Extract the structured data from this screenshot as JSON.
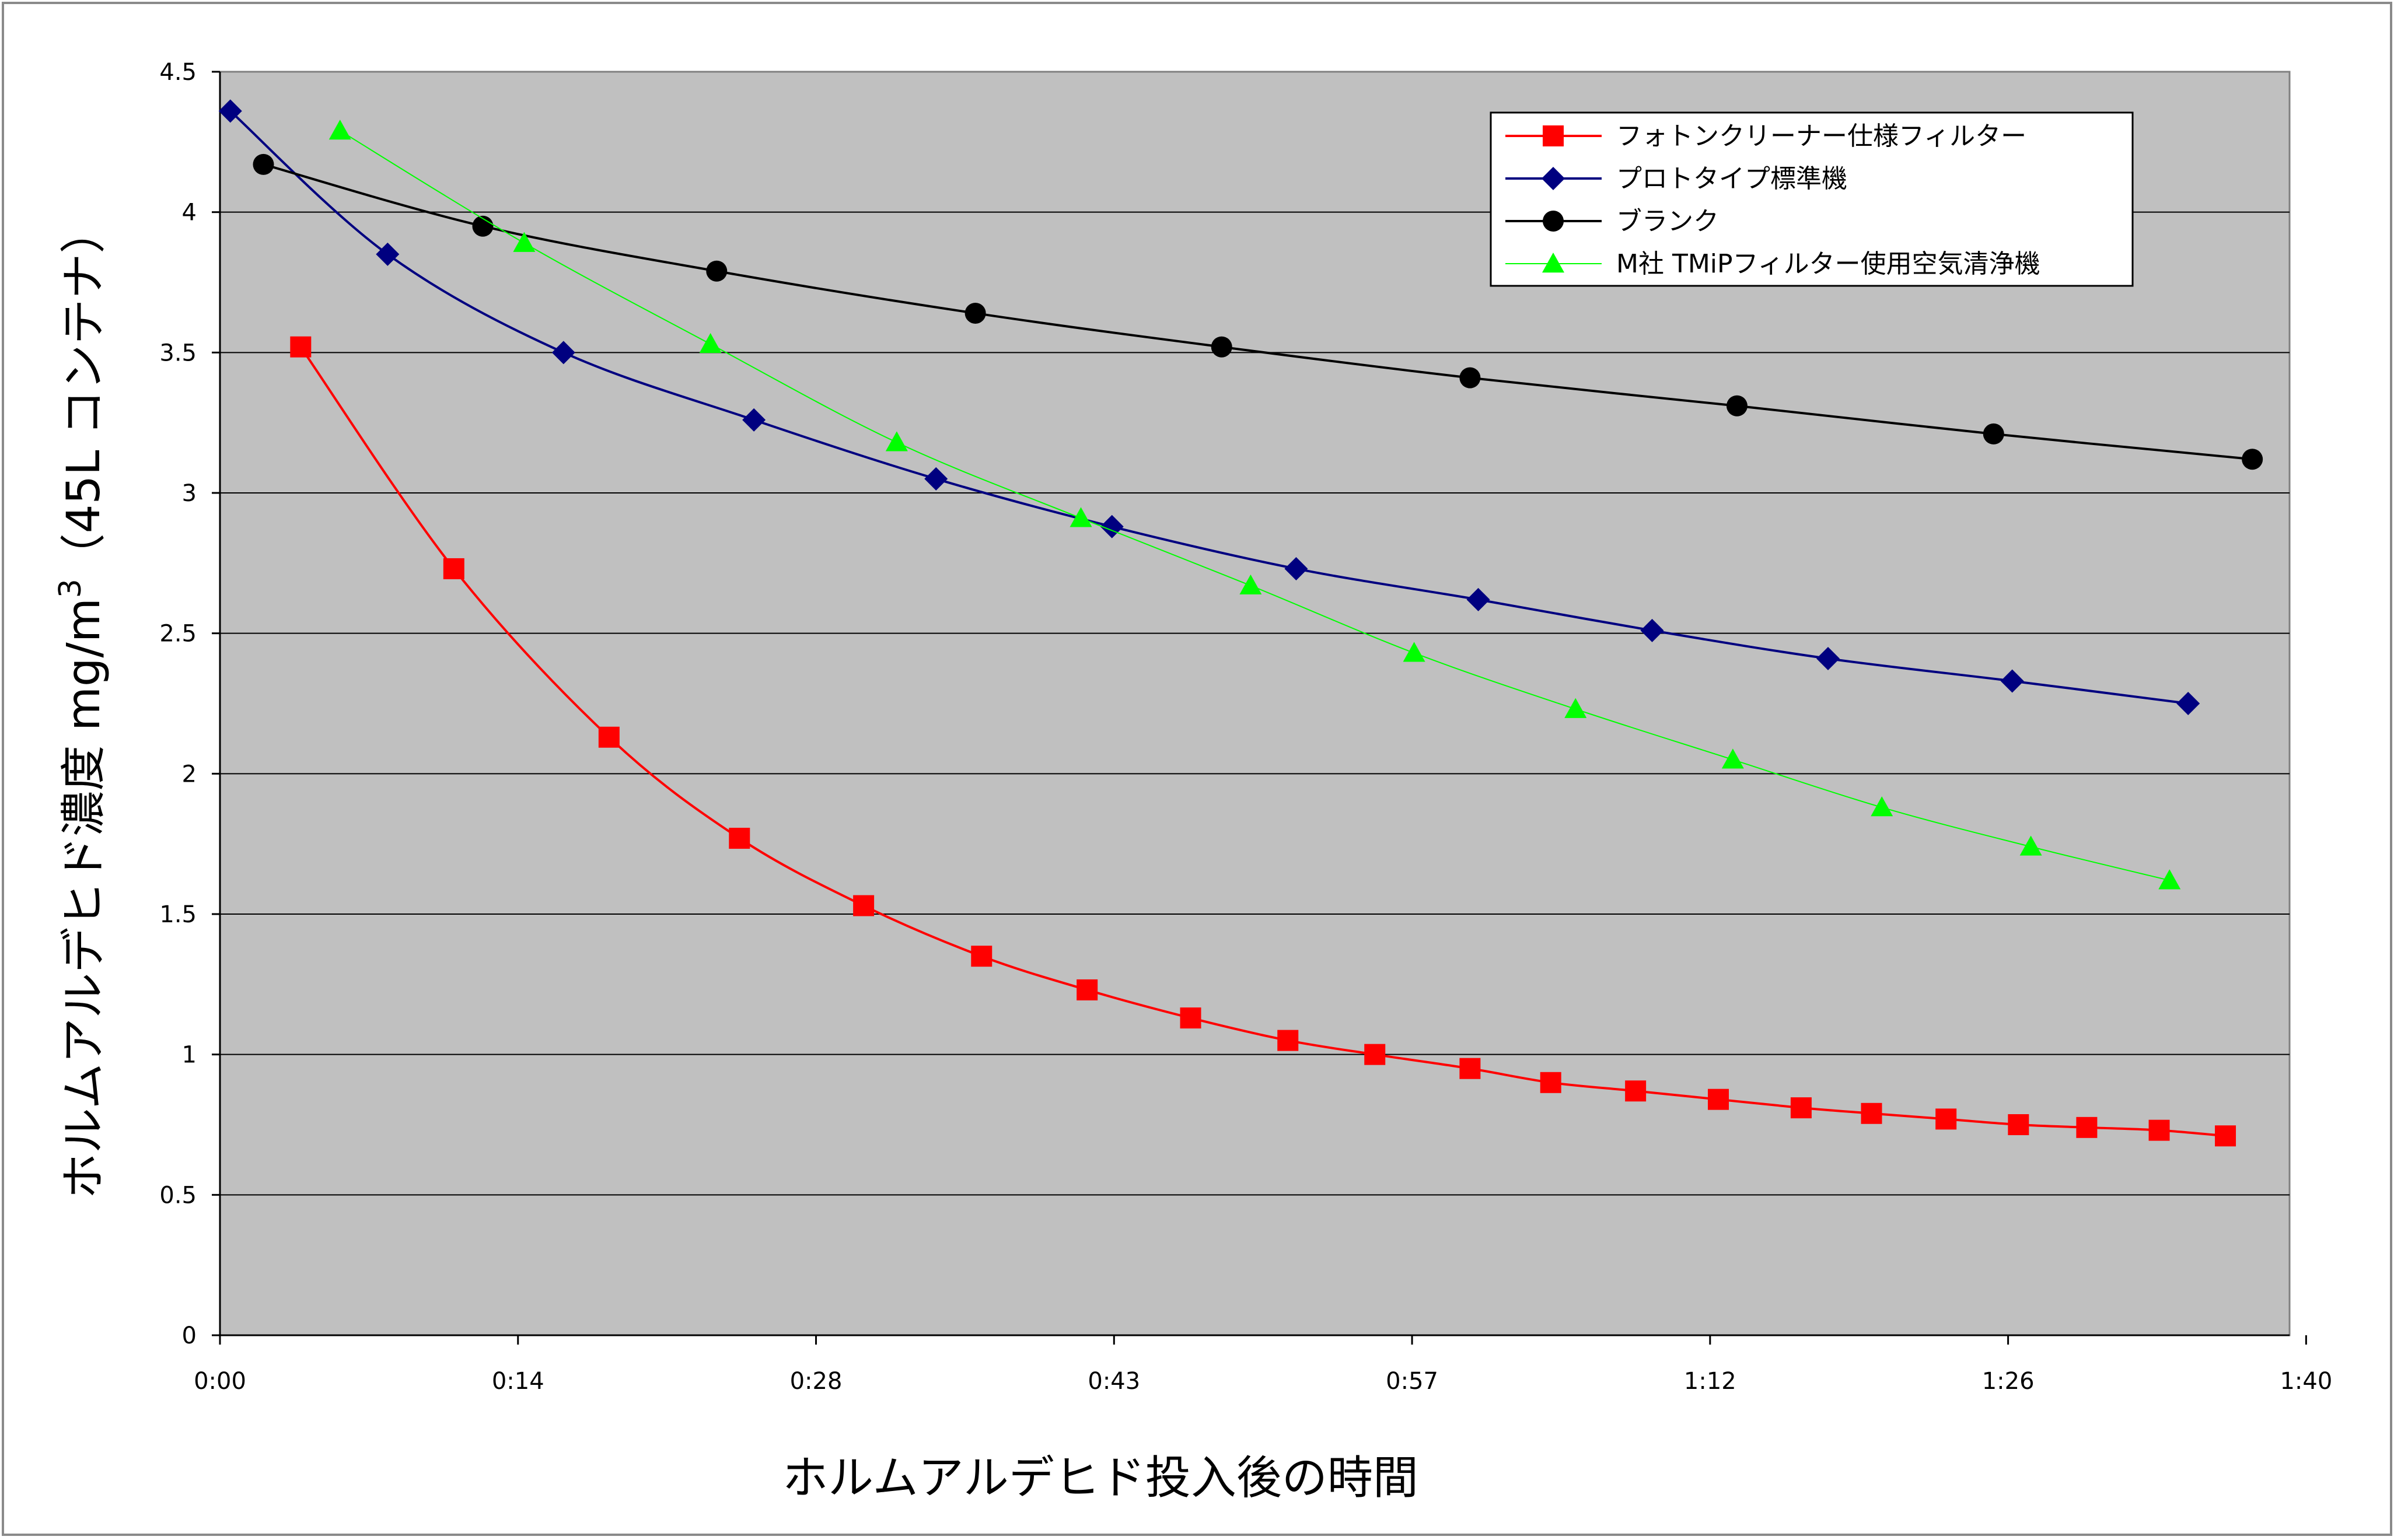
{
  "chart_data": {
    "type": "line",
    "xlabel": "ホルムアルデヒド投入後の時間",
    "ylabel": "ホルムアルデヒド濃度 mg/m",
    "ylabel_superscript": "3",
    "ylabel_suffix": "（45L コンテナ）",
    "x_unit": "minutes",
    "xlim": [
      0,
      100
    ],
    "ylim": [
      0,
      4.5
    ],
    "x_tick_values": [
      0,
      14.4,
      28.8,
      43.2,
      57.6,
      72,
      86.4,
      100.8
    ],
    "x_tick_labels": [
      "0:00",
      "0:14",
      "0:28",
      "0:43",
      "0:57",
      "1:12",
      "1:26",
      "1:40"
    ],
    "y_tick_values": [
      0,
      0.5,
      1,
      1.5,
      2,
      2.5,
      3,
      3.5,
      4,
      4.5
    ],
    "y_tick_labels": [
      "0",
      "0.5",
      "1",
      "1.5",
      "2",
      "2.5",
      "3",
      "3.5",
      "4",
      "4.5"
    ],
    "grid": true,
    "legend_position": "top-right",
    "plot_background": "#c0c0c0",
    "series": [
      {
        "name": "フォトンクリーナー仕様フィルター",
        "color": "#ff0000",
        "marker": "square",
        "x": [
          3.9,
          11.3,
          18.8,
          25.1,
          31.1,
          36.8,
          41.9,
          46.9,
          51.6,
          55.8,
          60.4,
          64.3,
          68.4,
          72.4,
          76.4,
          79.8,
          83.4,
          86.9,
          90.2,
          93.7,
          96.9
        ],
        "y": [
          3.52,
          2.73,
          2.13,
          1.77,
          1.53,
          1.35,
          1.23,
          1.13,
          1.05,
          1.0,
          0.95,
          0.9,
          0.87,
          0.84,
          0.81,
          0.79,
          0.77,
          0.75,
          0.74,
          0.73,
          0.71
        ]
      },
      {
        "name": "プロトタイプ標準機",
        "color": "#000080",
        "marker": "diamond",
        "x": [
          0.5,
          8.1,
          16.6,
          25.8,
          34.6,
          43.1,
          52.0,
          60.8,
          69.2,
          77.7,
          86.6,
          95.1
        ],
        "y": [
          4.36,
          3.85,
          3.5,
          3.26,
          3.05,
          2.88,
          2.73,
          2.62,
          2.51,
          2.41,
          2.33,
          2.25
        ]
      },
      {
        "name": "ブランク",
        "color": "#000000",
        "marker": "circle",
        "x": [
          2.1,
          12.7,
          24.0,
          36.5,
          48.4,
          60.4,
          73.3,
          85.7,
          98.2
        ],
        "y": [
          4.17,
          3.95,
          3.79,
          3.64,
          3.52,
          3.41,
          3.31,
          3.21,
          3.12
        ]
      },
      {
        "name": "M社 TMiPフィルター使用空気清浄機",
        "color": "#00ff00",
        "marker": "triangle",
        "x": [
          5.8,
          14.7,
          23.7,
          32.7,
          41.6,
          49.8,
          57.7,
          65.5,
          73.1,
          80.3,
          87.5,
          94.2
        ],
        "y": [
          4.29,
          3.89,
          3.53,
          3.18,
          2.91,
          2.67,
          2.43,
          2.23,
          2.05,
          1.88,
          1.74,
          1.62
        ]
      }
    ]
  }
}
